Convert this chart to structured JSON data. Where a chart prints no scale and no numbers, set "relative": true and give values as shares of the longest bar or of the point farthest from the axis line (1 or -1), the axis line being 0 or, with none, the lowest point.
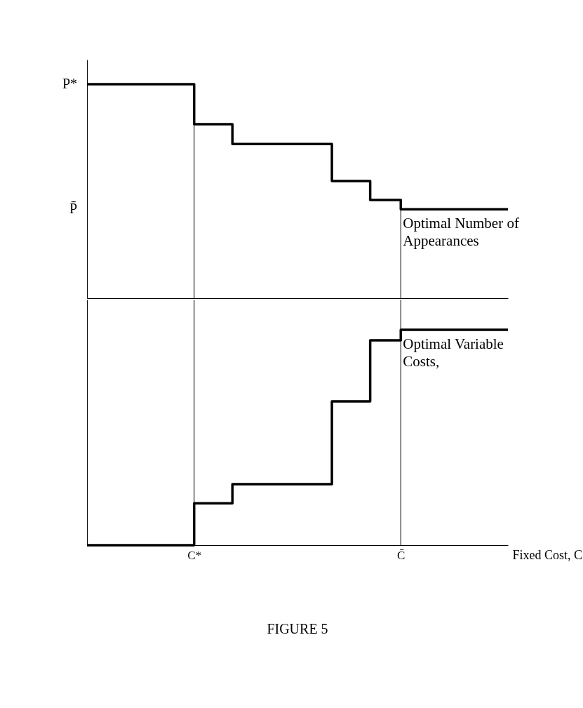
{
  "chart_data": [
    {
      "type": "step",
      "relative": true,
      "categories": [
        null,
        null,
        null,
        null,
        null,
        null,
        null,
        null,
        null,
        null,
        null,
        null,
        null,
        null,
        "C*",
        null,
        null,
        null,
        null,
        null,
        null,
        null,
        null,
        null,
        null,
        null,
        null,
        null,
        null,
        null,
        null,
        null,
        null,
        null,
        null,
        null,
        null,
        null,
        null,
        null,
        null,
        "C̄",
        null,
        null,
        null,
        null,
        null,
        null,
        null,
        null,
        null,
        null,
        null,
        null,
        null,
        null
      ],
      "tick_labels": false,
      "legend": false,
      "line_style": "solid",
      "series": [
        {
          "name": "Optimal Number of Appearances",
          "color": "#000000",
          "values": [
            1,
            1,
            1,
            1,
            1,
            1,
            1,
            1,
            1,
            1,
            1,
            1,
            1,
            1,
            0.813,
            0.813,
            0.813,
            0.813,
            0.813,
            0.721,
            0.721,
            0.721,
            0.721,
            0.721,
            0.721,
            0.721,
            0.721,
            0.721,
            0.721,
            0.721,
            0.721,
            0.721,
            0.548,
            0.548,
            0.548,
            0.548,
            0.548,
            0.459,
            0.459,
            0.459,
            0.459,
            0.416,
            0.416,
            0.416,
            0.416,
            0.416,
            0.416,
            0.416,
            0.416,
            0.416,
            0.416,
            0.416,
            0.416,
            0.416,
            0.416,
            0.416
          ]
        }
      ],
      "annotations": [
        "P*",
        "P̄"
      ],
      "ref_lines": [
        {
          "axis": "x",
          "value": "C*"
        },
        {
          "axis": "x",
          "value": "C̄"
        }
      ]
    },
    {
      "type": "step",
      "relative": true,
      "categories": [
        null,
        null,
        null,
        null,
        null,
        null,
        null,
        null,
        null,
        null,
        null,
        null,
        null,
        null,
        "C*",
        null,
        null,
        null,
        null,
        null,
        null,
        null,
        null,
        null,
        null,
        null,
        null,
        null,
        null,
        null,
        null,
        null,
        null,
        null,
        null,
        null,
        null,
        null,
        null,
        null,
        null,
        "C̄",
        null,
        null,
        null,
        null,
        null,
        null,
        null,
        null,
        null,
        null,
        null,
        null,
        null,
        null
      ],
      "tick_labels": "x",
      "legend": false,
      "line_style": "solid",
      "xlabel": "Fixed Cost, C",
      "series": [
        {
          "name": "Optimal Variable Costs,",
          "color": "#000000",
          "values": [
            0,
            0,
            0,
            0,
            0,
            0,
            0,
            0,
            0,
            0,
            0,
            0,
            0,
            0,
            0.195,
            0.195,
            0.195,
            0.195,
            0.195,
            0.283,
            0.283,
            0.283,
            0.283,
            0.283,
            0.283,
            0.283,
            0.283,
            0.283,
            0.283,
            0.283,
            0.283,
            0.283,
            0.668,
            0.668,
            0.668,
            0.668,
            0.668,
            0.951,
            0.951,
            0.951,
            0.951,
            1,
            1,
            1,
            1,
            1,
            1,
            1,
            1,
            1,
            1,
            1,
            1,
            1,
            1,
            1
          ]
        }
      ],
      "annotations": [
        "FIGURE 5"
      ],
      "ref_lines": [
        {
          "axis": "x",
          "value": "C*"
        },
        {
          "axis": "x",
          "value": "C̄"
        }
      ]
    }
  ]
}
